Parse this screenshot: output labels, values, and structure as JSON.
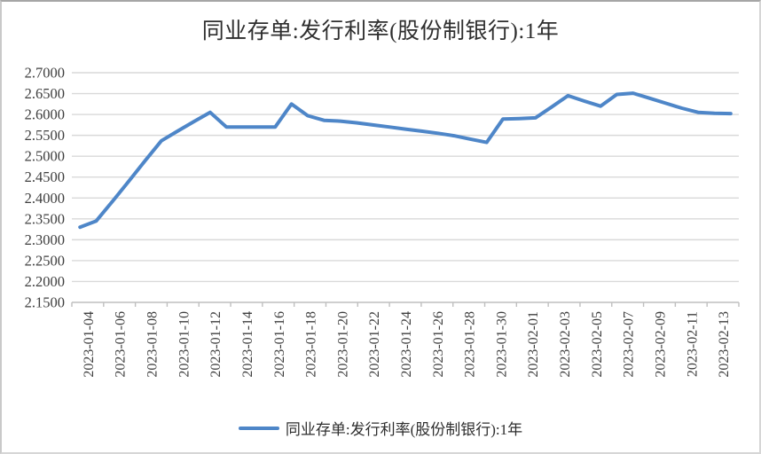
{
  "chart_data": {
    "type": "line",
    "title": "同业存单:发行利率(股份制银行):1年",
    "x": [
      "2023-01-04",
      "2023-01-05",
      "2023-01-06",
      "2023-01-07",
      "2023-01-08",
      "2023-01-09",
      "2023-01-10",
      "2023-01-11",
      "2023-01-12",
      "2023-01-13",
      "2023-01-14",
      "2023-01-15",
      "2023-01-16",
      "2023-01-17",
      "2023-01-18",
      "2023-01-19",
      "2023-01-20",
      "2023-01-21",
      "2023-01-22",
      "2023-01-23",
      "2023-01-24",
      "2023-01-25",
      "2023-01-26",
      "2023-01-27",
      "2023-01-28",
      "2023-01-29",
      "2023-01-30",
      "2023-01-31",
      "2023-02-01",
      "2023-02-02",
      "2023-02-03",
      "2023-02-04",
      "2023-02-05",
      "2023-02-06",
      "2023-02-07",
      "2023-02-08",
      "2023-02-09",
      "2023-02-10",
      "2023-02-11",
      "2023-02-12",
      "2023-02-13"
    ],
    "series": [
      {
        "name": "同业存单:发行利率(股份制银行):1年",
        "values": [
          2.33,
          2.345,
          2.392,
          2.44,
          2.489,
          2.537,
          2.56,
          2.583,
          2.605,
          2.57,
          2.57,
          2.57,
          2.57,
          2.625,
          2.597,
          2.586,
          2.584,
          2.58,
          2.575,
          2.57,
          2.565,
          2.56,
          2.555,
          2.549,
          2.541,
          2.533,
          2.589,
          2.59,
          2.592,
          2.618,
          2.645,
          2.632,
          2.62,
          2.648,
          2.651,
          2.639,
          2.627,
          2.615,
          2.605,
          2.603,
          2.602
        ]
      }
    ],
    "ylim": [
      2.15,
      2.7
    ],
    "y_tick_labels": [
      "2.7000",
      "2.6500",
      "2.6000",
      "2.5500",
      "2.5000",
      "2.4500",
      "2.4000",
      "2.3500",
      "2.3000",
      "2.2500",
      "2.2000",
      "2.1500"
    ],
    "x_tick_labels": [
      "2023-01-04",
      "2023-01-06",
      "2023-01-08",
      "2023-01-10",
      "2023-01-12",
      "2023-01-14",
      "2023-01-16",
      "2023-01-18",
      "2023-01-20",
      "2023-01-22",
      "2023-01-24",
      "2023-01-26",
      "2023-01-28",
      "2023-01-30",
      "2023-02-01",
      "2023-02-03",
      "2023-02-05",
      "2023-02-07",
      "2023-02-09",
      "2023-02-11",
      "2023-02-13"
    ],
    "grid": "horizontal",
    "legend_position": "bottom"
  },
  "colors": {
    "series_line": "#4E86C8",
    "gridline": "#D9D9D9",
    "axis": "#BFBFBF",
    "tick_text": "#3F3F3F",
    "title_text": "#2E2E2E",
    "background": "#FFFFFF"
  }
}
